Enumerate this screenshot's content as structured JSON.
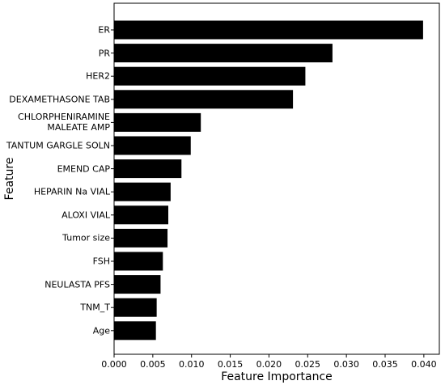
{
  "chart_data": {
    "type": "barh",
    "xlabel": "Feature Importance",
    "ylabel": "Feature",
    "categories": [
      "ER",
      "PR",
      "HER2",
      "DEXAMETHASONE TAB",
      "CHLORPHENIRAMINE\nMALEATE AMP",
      "TANTUM GARGLE SOLN",
      "EMEND CAP",
      "HEPARIN Na VIAL",
      "ALOXI VIAL",
      "Tumor size",
      "FSH",
      "NEULASTA PFS",
      "TNM_T",
      "Age"
    ],
    "values": [
      0.0399,
      0.0282,
      0.0247,
      0.0231,
      0.0112,
      0.0099,
      0.0087,
      0.0073,
      0.007,
      0.0069,
      0.0063,
      0.006,
      0.0055,
      0.0054
    ],
    "color": "#000000",
    "xlim": [
      0,
      0.042
    ],
    "xticks": [
      {
        "value": 0,
        "label": "0.000"
      },
      {
        "value": 0.005,
        "label": "0.005"
      },
      {
        "value": 0.01,
        "label": "0.010"
      },
      {
        "value": 0.015,
        "label": "0.015"
      },
      {
        "value": 0.02,
        "label": "0.020"
      },
      {
        "value": 0.025,
        "label": "0.025"
      },
      {
        "value": 0.03,
        "label": "0.030"
      },
      {
        "value": 0.035,
        "label": "0.035"
      },
      {
        "value": 0.04,
        "label": "0.040"
      }
    ]
  }
}
